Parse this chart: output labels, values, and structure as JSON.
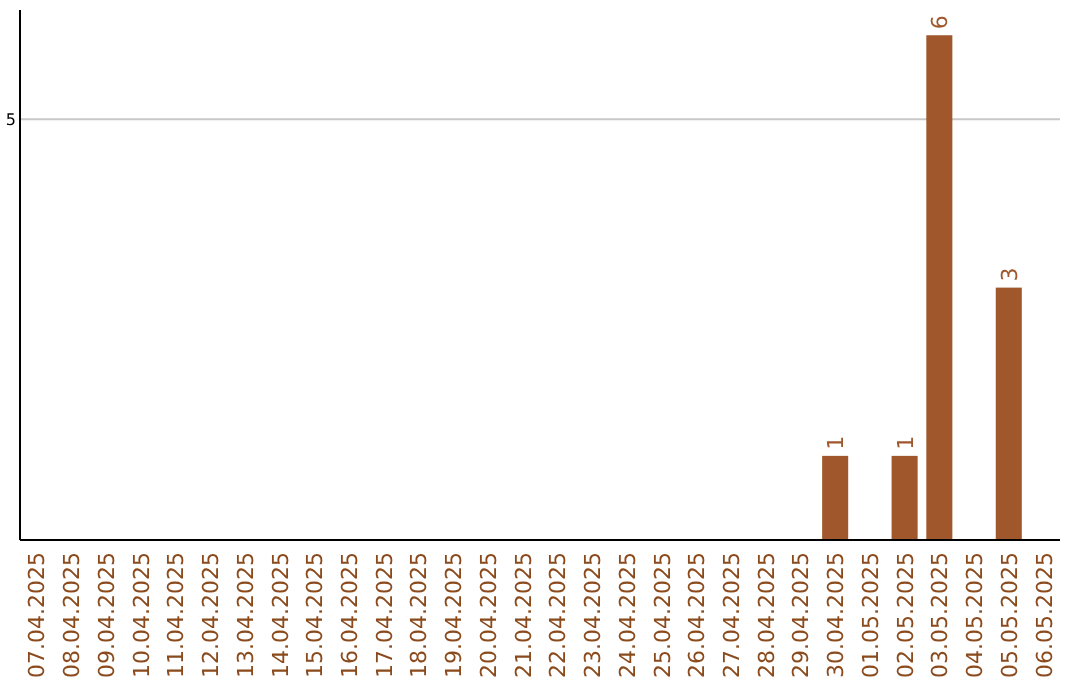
{
  "chart_data": {
    "type": "bar",
    "categories": [
      "07.04.2025",
      "08.04.2025",
      "09.04.2025",
      "10.04.2025",
      "11.04.2025",
      "12.04.2025",
      "13.04.2025",
      "14.04.2025",
      "15.04.2025",
      "16.04.2025",
      "17.04.2025",
      "18.04.2025",
      "19.04.2025",
      "20.04.2025",
      "21.04.2025",
      "22.04.2025",
      "23.04.2025",
      "24.04.2025",
      "25.04.2025",
      "26.04.2025",
      "27.04.2025",
      "28.04.2025",
      "29.04.2025",
      "30.04.2025",
      "01.05.2025",
      "02.05.2025",
      "03.05.2025",
      "04.05.2025",
      "05.05.2025",
      "06.05.2025"
    ],
    "values": [
      null,
      null,
      null,
      null,
      null,
      null,
      null,
      null,
      null,
      null,
      null,
      null,
      null,
      null,
      null,
      null,
      null,
      null,
      null,
      null,
      null,
      null,
      null,
      1,
      null,
      1,
      6,
      null,
      3,
      null
    ],
    "data_labels": true,
    "color": "#a0572b",
    "ylim": [
      0,
      6.3
    ],
    "yticks": [
      5
    ],
    "grid": "y"
  }
}
